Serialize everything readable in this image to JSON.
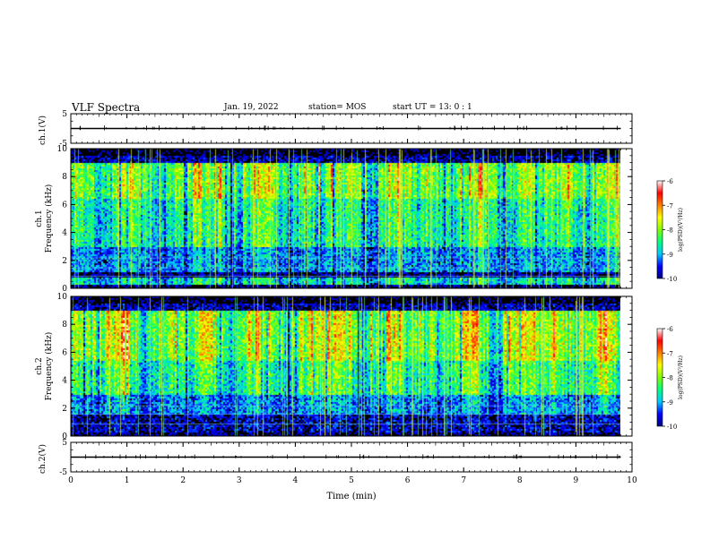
{
  "header": {
    "title": "VLF Spectra",
    "date": "Jan. 19, 2022",
    "station": "station= MOS",
    "start_ut": "start  UT =   13: 0  : 1"
  },
  "chart_data": [
    {
      "type": "line",
      "panel": "ch1-waveform",
      "ylabel": "ch.1(V)",
      "ylim": [
        -5,
        5
      ],
      "yticks": [
        "5",
        "-5"
      ],
      "xlim": [
        0,
        10
      ],
      "series": [
        {
          "x": [
            0,
            9.8
          ],
          "y": [
            0,
            0
          ]
        }
      ]
    },
    {
      "type": "heatmap",
      "panel": "ch1-spectrogram",
      "ylabel": "ch.1\nFrequency (kHz)",
      "ylim": [
        0,
        10
      ],
      "yticks": [
        "0",
        "2",
        "4",
        "6",
        "8",
        "10"
      ],
      "xlim": [
        0,
        9.8
      ],
      "colorbar": {
        "label": "log(PSD)(V²/Hz)",
        "range": [
          -10,
          -6
        ],
        "ticks": [
          "-6",
          "-7",
          "-8",
          "-9",
          "-10"
        ]
      }
    },
    {
      "type": "heatmap",
      "panel": "ch2-spectrogram",
      "ylabel": "ch.2\nFrequency (kHz)",
      "ylim": [
        0,
        10
      ],
      "yticks": [
        "0",
        "2",
        "4",
        "6",
        "8",
        "10"
      ],
      "xlim": [
        0,
        9.8
      ],
      "colorbar": {
        "label": "log(PSD)(V²/Hz)",
        "range": [
          -10,
          -6
        ],
        "ticks": [
          "-6",
          "-7",
          "-8",
          "-9",
          "-10"
        ]
      }
    },
    {
      "type": "line",
      "panel": "ch2-waveform",
      "ylabel": "ch.2(V)",
      "ylim": [
        -5,
        5
      ],
      "yticks": [
        "5",
        "-5"
      ],
      "xlim": [
        0,
        10
      ],
      "series": [
        {
          "x": [
            0,
            9.8
          ],
          "y": [
            0,
            0
          ]
        }
      ]
    }
  ],
  "x_axis": {
    "label": "Time (min)",
    "ticks": [
      "0",
      "1",
      "2",
      "3",
      "4",
      "5",
      "6",
      "7",
      "8",
      "9",
      "10"
    ]
  },
  "colors": {
    "colormap": [
      "#000080",
      "#0000ff",
      "#00c8ff",
      "#00ff80",
      "#80ff00",
      "#ffff00",
      "#ff8000",
      "#ff0000",
      "#ffffff"
    ],
    "axis": "#000000"
  }
}
